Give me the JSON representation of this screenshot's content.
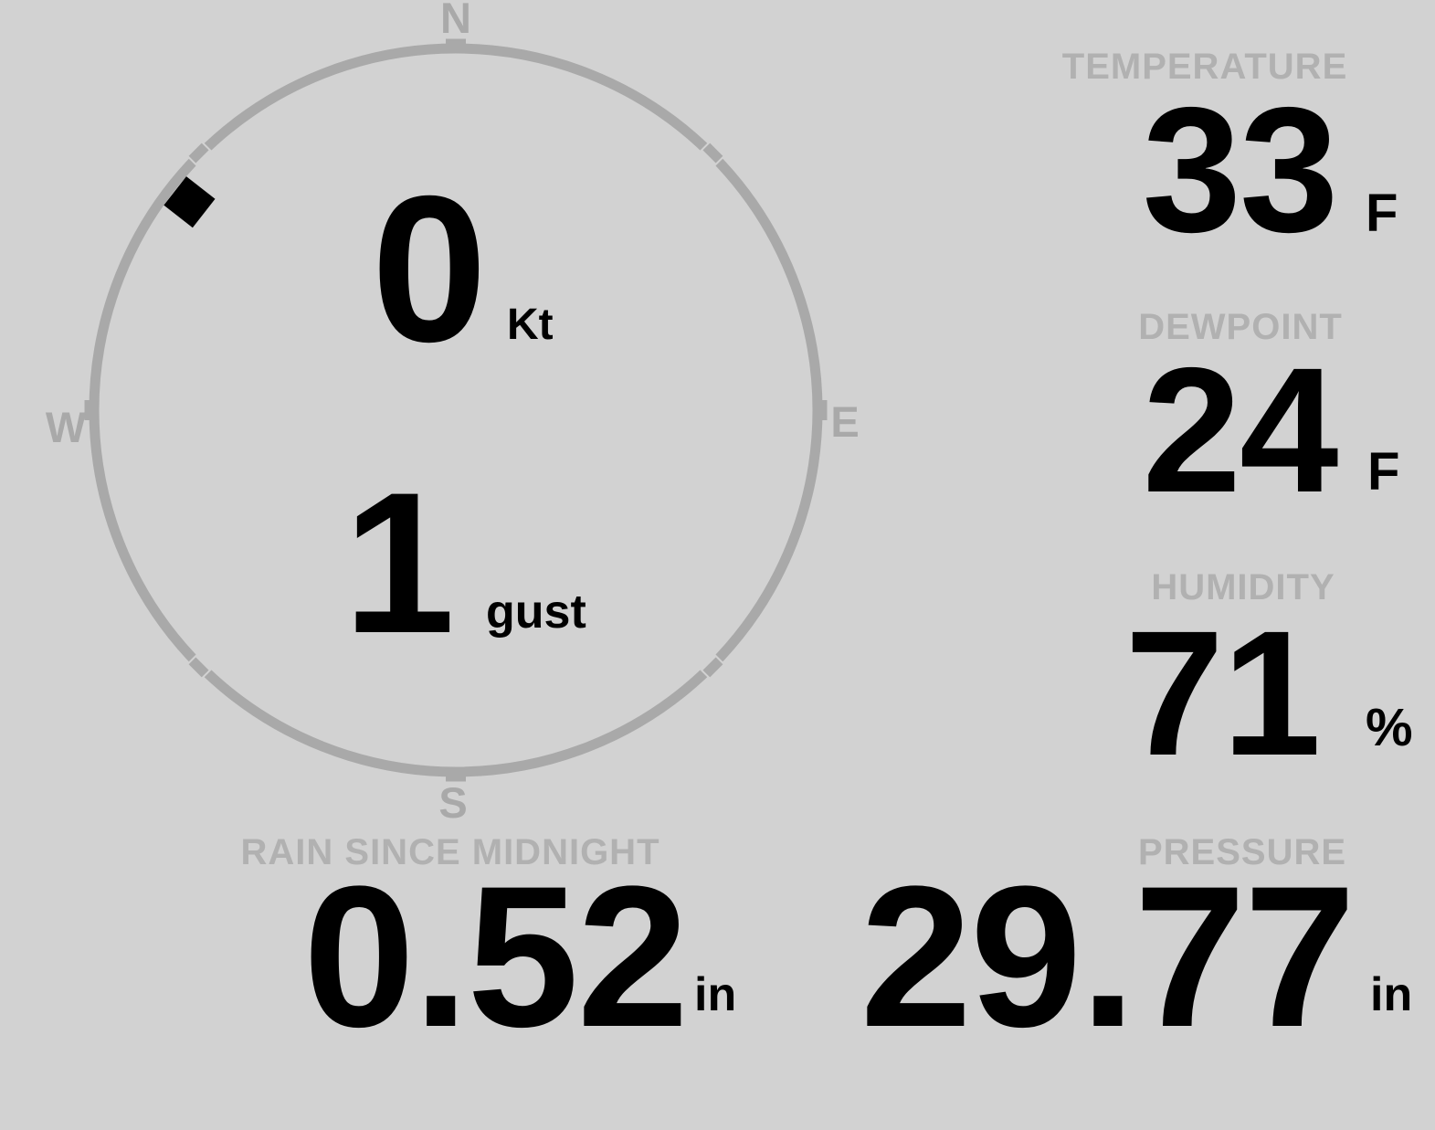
{
  "colors": {
    "background": "#d2d2d2",
    "gauge": "#a9a9a9",
    "label": "#b1b1b1",
    "value": "#000000"
  },
  "wind": {
    "speed": "0",
    "speed_unit": "Kt",
    "gust": "1",
    "gust_unit": "gust",
    "direction_deg": 308,
    "compass": {
      "north": "N",
      "east": "E",
      "south": "S",
      "west": "W"
    }
  },
  "stats": {
    "temperature": {
      "label": "TEMPERATURE",
      "value": "33",
      "unit": "F"
    },
    "dewpoint": {
      "label": "DEWPOINT",
      "value": "24",
      "unit": "F"
    },
    "humidity": {
      "label": "HUMIDITY",
      "value": "71",
      "unit": "%"
    },
    "rain": {
      "label": "RAIN SINCE MIDNIGHT",
      "value": "0.52",
      "unit": "in"
    },
    "pressure": {
      "label": "PRESSURE",
      "value": "29.77",
      "unit": "in"
    }
  }
}
